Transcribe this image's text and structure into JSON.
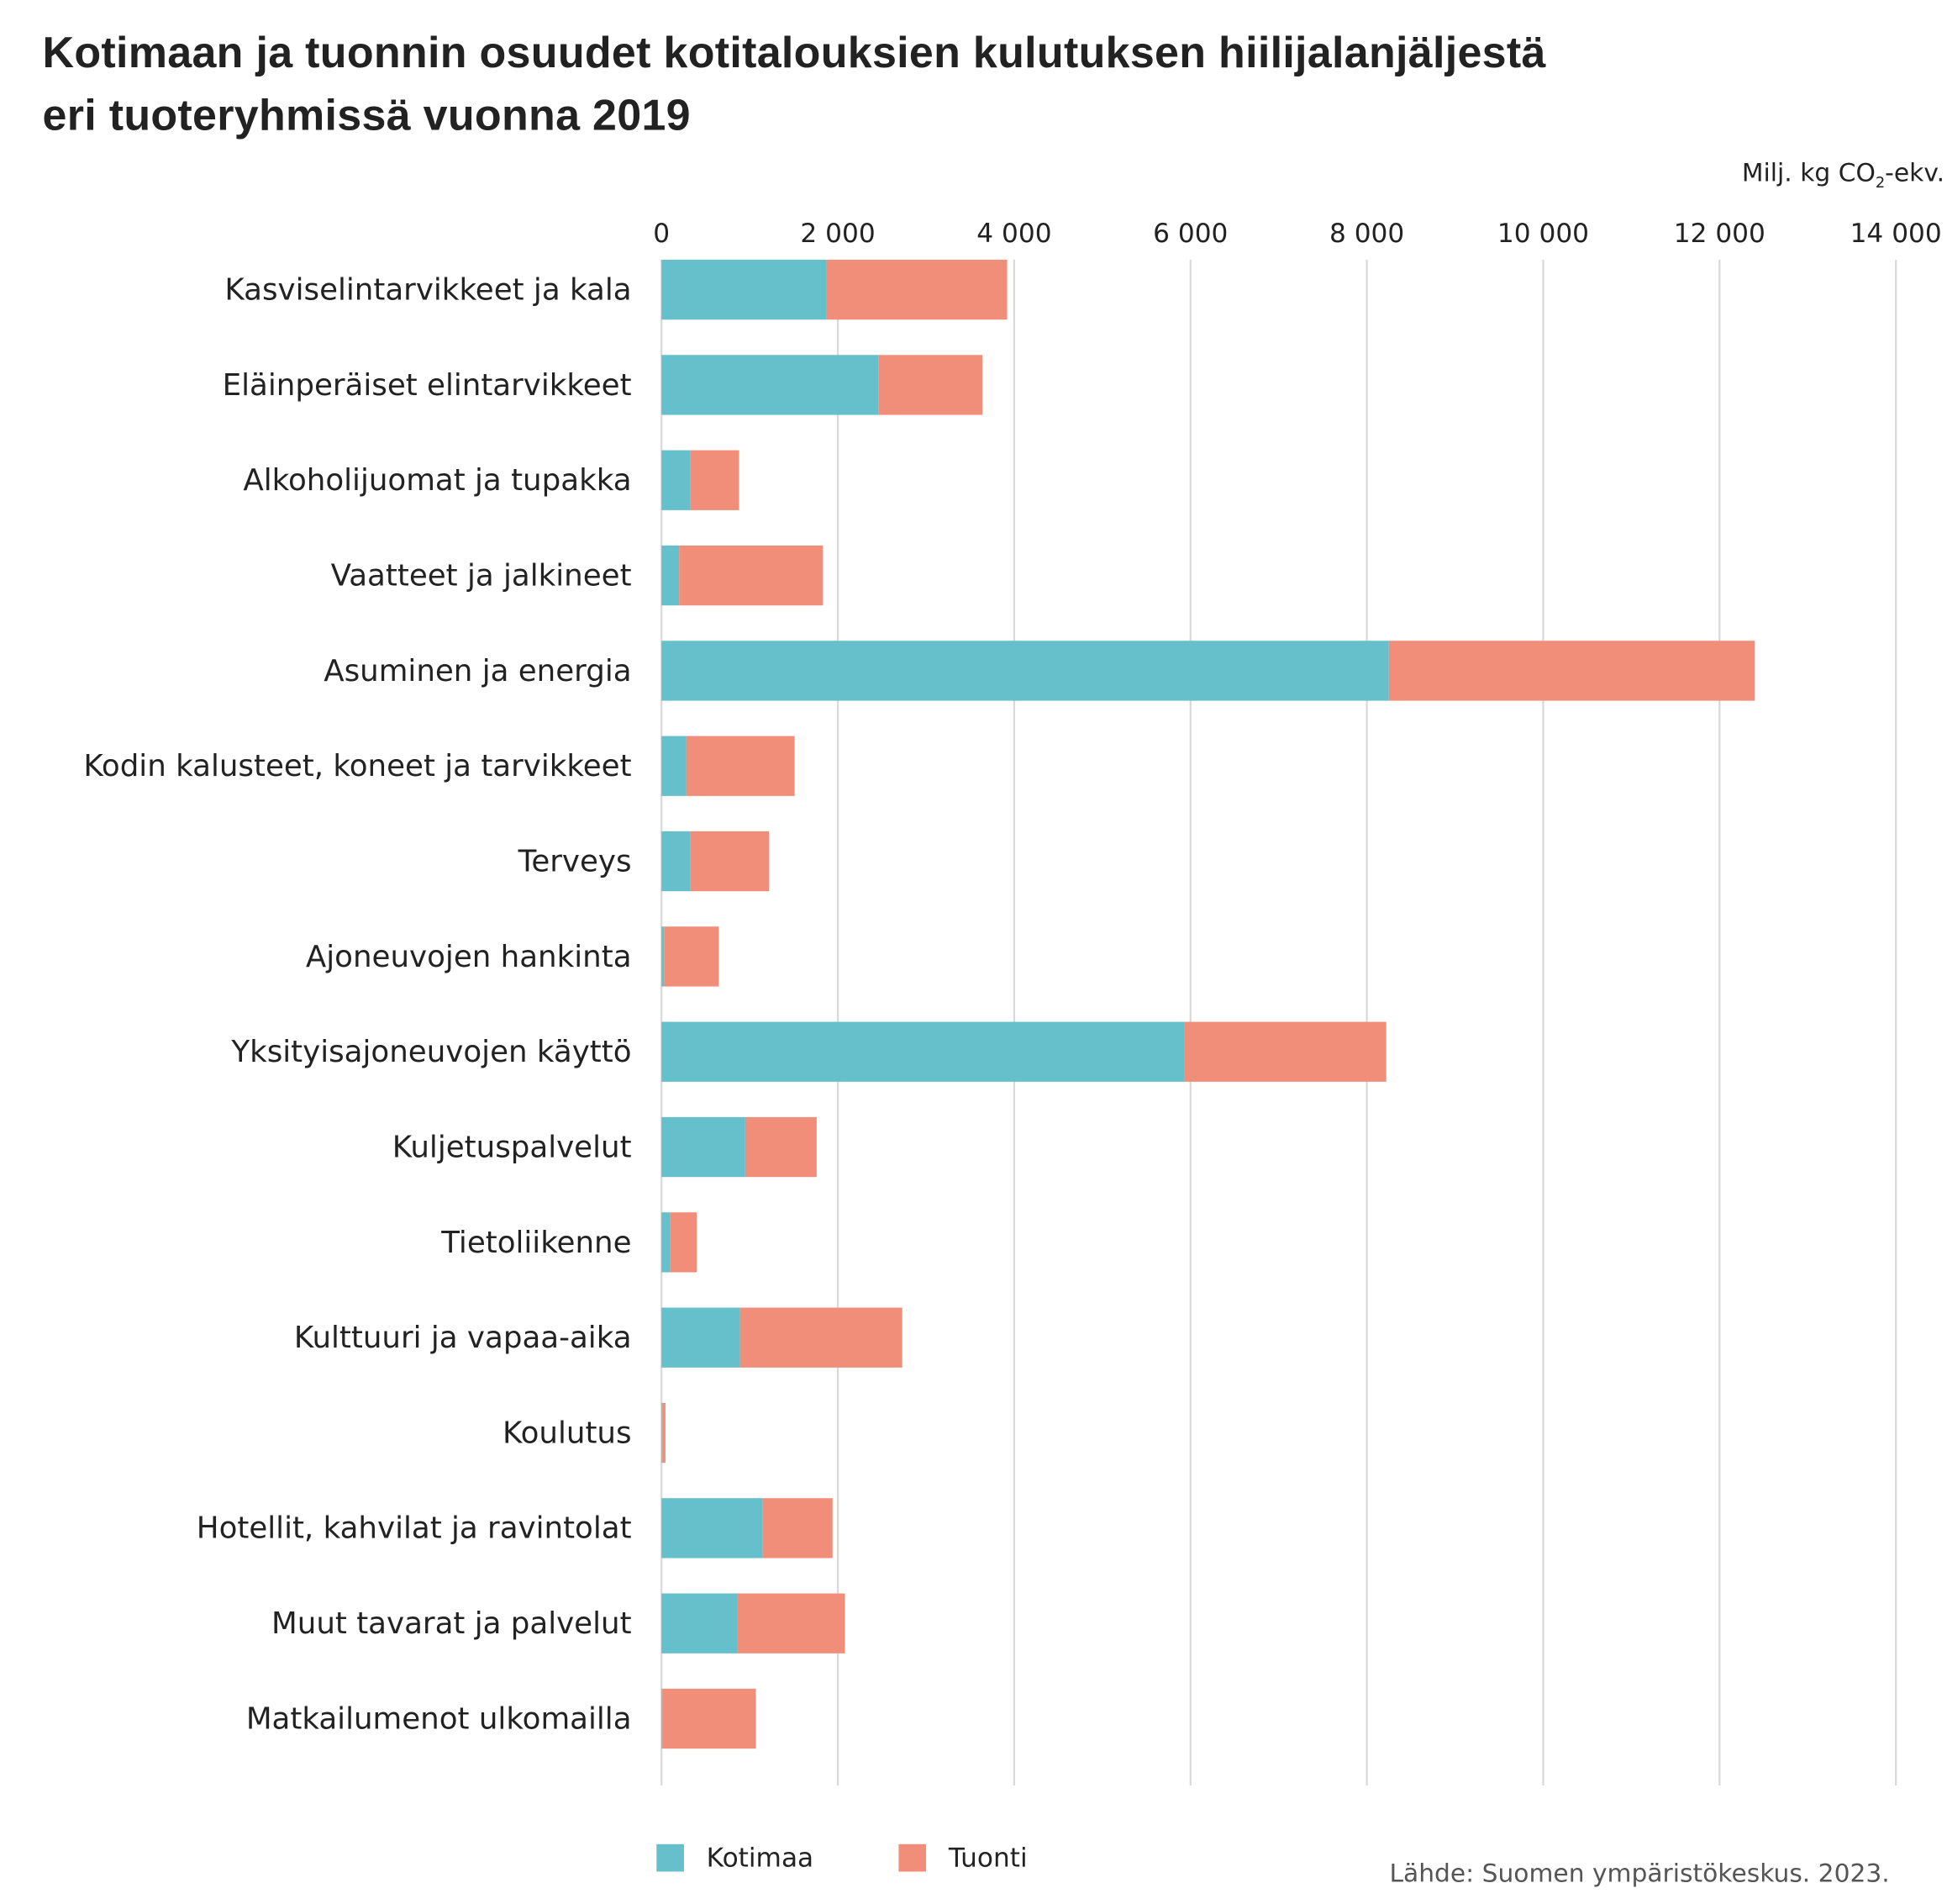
{
  "title_line1": "Kotimaan ja tuonnin osuudet kotitalouksien kulutuksen hiilijalanjäljestä",
  "title_line2": "eri tuoteryhmissä vuonna 2019",
  "source": "Lähde: Suomen ympäristökeskus. 2023.",
  "colors": {
    "Kotimaa": "#65c0cb",
    "Tuonti": "#f18e79",
    "grid": "#d9d9d9"
  },
  "chart_data": {
    "type": "bar",
    "orientation": "horizontal",
    "stacked": true,
    "title": "Kotimaan ja tuonnin osuudet kotitalouksien kulutuksen hiilijalanjäljestä eri tuoteryhmissä vuonna 2019",
    "xlabel_prefix": "Milj. kg CO",
    "xlabel_sub": "2",
    "xlabel_suffix": "-ekv.",
    "xlim": [
      0,
      14000
    ],
    "xticks": [
      0,
      2000,
      4000,
      6000,
      8000,
      10000,
      12000,
      14000
    ],
    "xtick_labels": [
      "0",
      "2 000",
      "4 000",
      "6 000",
      "8 000",
      "10 000",
      "12 000",
      "14 000"
    ],
    "grid": true,
    "legend_position": "bottom-left",
    "categories": [
      "Kasviselintarvikkeet ja kala",
      "Eläinperäiset elintarvikkeet",
      "Alkoholijuomat ja tupakka",
      "Vaatteet ja jalkineet",
      "Asuminen ja energia",
      "Kodin kalusteet, koneet ja tarvikkeet",
      "Terveys",
      "Ajoneuvojen hankinta",
      "Yksityisajoneuvojen käyttö",
      "Kuljetuspalvelut",
      "Tietoliikenne",
      "Kulttuuri ja vapaa-aika",
      "Koulutus",
      "Hotellit, kahvilat ja ravintolat",
      "Muut tavarat ja palvelut",
      "Matkailumenot ulkomailla"
    ],
    "series": [
      {
        "name": "Kotimaa",
        "values": [
          1870,
          2460,
          330,
          200,
          8250,
          280,
          330,
          30,
          5930,
          950,
          100,
          890,
          10,
          1150,
          860,
          10
        ]
      },
      {
        "name": "Tuonti",
        "values": [
          2050,
          1180,
          550,
          1630,
          4150,
          1230,
          890,
          620,
          2290,
          810,
          300,
          1840,
          35,
          790,
          1220,
          1060
        ]
      }
    ]
  }
}
